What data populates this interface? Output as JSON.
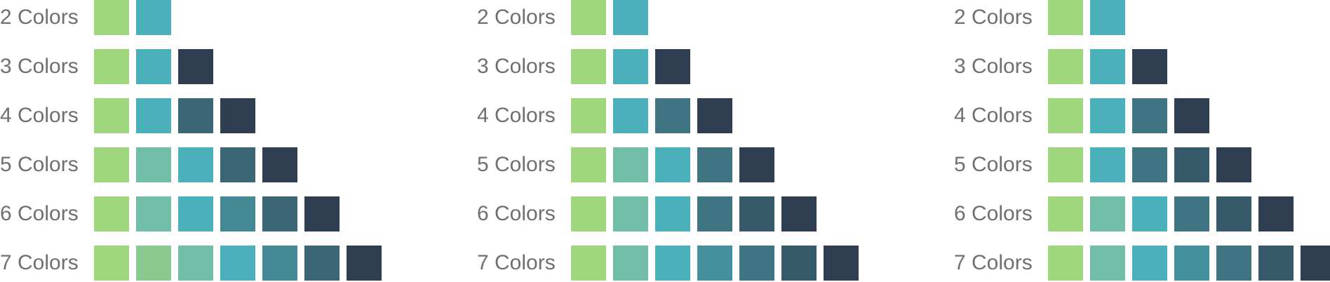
{
  "groups": [
    {
      "rows": [
        {
          "label": "2 Colors",
          "colors": [
            "#9fd67e",
            "#4cb0ba"
          ]
        },
        {
          "label": "3 Colors",
          "colors": [
            "#9fd67e",
            "#4cb0ba",
            "#2e3e50"
          ]
        },
        {
          "label": "4 Colors",
          "colors": [
            "#9fd67e",
            "#4cb0ba",
            "#3a6675",
            "#2e3e50"
          ]
        },
        {
          "label": "5 Colors",
          "colors": [
            "#9fd67e",
            "#72bda8",
            "#4cb0ba",
            "#3a6675",
            "#2e3e50"
          ]
        },
        {
          "label": "6 Colors",
          "colors": [
            "#9fd67e",
            "#72bda8",
            "#4cb0ba",
            "#448893",
            "#3a6675",
            "#2e3e50"
          ]
        },
        {
          "label": "7 Colors",
          "colors": [
            "#9fd67e",
            "#8ac98f",
            "#72bda8",
            "#4cb0ba",
            "#448893",
            "#3a6675",
            "#2e3e50"
          ]
        }
      ]
    },
    {
      "rows": [
        {
          "label": "2 Colors",
          "colors": [
            "#9fd67e",
            "#4cb0ba"
          ]
        },
        {
          "label": "3 Colors",
          "colors": [
            "#9fd67e",
            "#4cb0ba",
            "#2e3e50"
          ]
        },
        {
          "label": "4 Colors",
          "colors": [
            "#9fd67e",
            "#4cb0ba",
            "#3f7583",
            "#2e3e50"
          ]
        },
        {
          "label": "5 Colors",
          "colors": [
            "#9fd67e",
            "#72bda8",
            "#4cb0ba",
            "#3f7583",
            "#2e3e50"
          ]
        },
        {
          "label": "6 Colors",
          "colors": [
            "#9fd67e",
            "#72bda8",
            "#4cb0ba",
            "#3f7583",
            "#375a6b",
            "#2e3e50"
          ]
        },
        {
          "label": "7 Colors",
          "colors": [
            "#9fd67e",
            "#72bda8",
            "#4cb0ba",
            "#448f9c",
            "#3f7583",
            "#375a6b",
            "#2e3e50"
          ]
        }
      ]
    },
    {
      "rows": [
        {
          "label": "2 Colors",
          "colors": [
            "#9fd67e",
            "#4cb0ba"
          ]
        },
        {
          "label": "3 Colors",
          "colors": [
            "#9fd67e",
            "#4cb0ba",
            "#2e3e50"
          ]
        },
        {
          "label": "4 Colors",
          "colors": [
            "#9fd67e",
            "#4cb0ba",
            "#3f7583",
            "#2e3e50"
          ]
        },
        {
          "label": "5 Colors",
          "colors": [
            "#9fd67e",
            "#4cb0ba",
            "#3f7583",
            "#375a6b",
            "#2e3e50"
          ]
        },
        {
          "label": "6 Colors",
          "colors": [
            "#9fd67e",
            "#72bda8",
            "#4cb0ba",
            "#3f7583",
            "#375a6b",
            "#2e3e50"
          ]
        },
        {
          "label": "7 Colors",
          "colors": [
            "#9fd67e",
            "#72bda8",
            "#4cb0ba",
            "#448f9c",
            "#3f7583",
            "#375a6b",
            "#2e3e50"
          ]
        }
      ]
    }
  ]
}
